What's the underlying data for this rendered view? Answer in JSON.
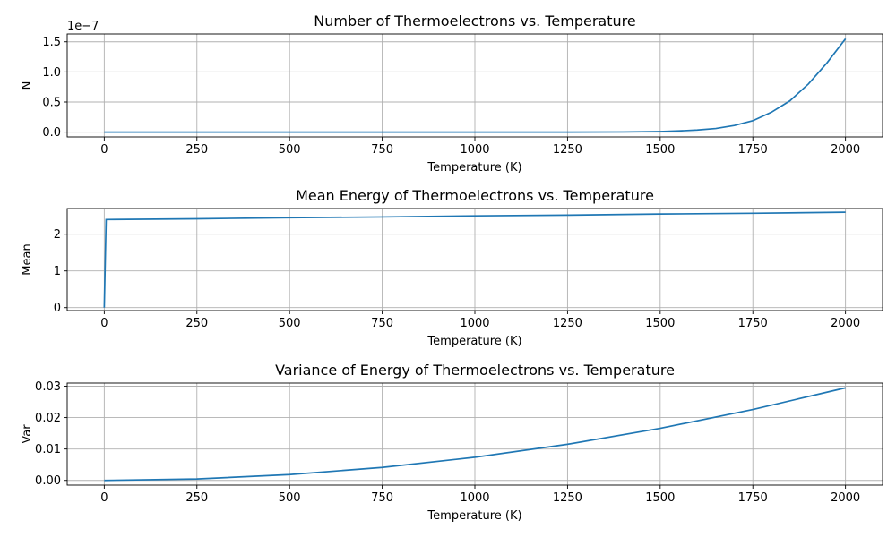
{
  "chart_data": [
    {
      "type": "line",
      "title": "Number of Thermoelectrons vs. Temperature",
      "xlabel": "Temperature (K)",
      "ylabel": "N",
      "offset_text": "1e−7",
      "xlim": [
        -100,
        2100
      ],
      "ylim": [
        -0.08,
        1.63
      ],
      "xticks": [
        0,
        250,
        500,
        750,
        1000,
        1250,
        1500,
        1750,
        2000
      ],
      "yticks": [
        0.0,
        0.5,
        1.0,
        1.5
      ],
      "ytick_labels": [
        "0.0",
        "0.5",
        "1.0",
        "1.5"
      ],
      "grid": true,
      "color": "#1f77b4",
      "series": [
        {
          "x": [
            0,
            250,
            500,
            750,
            1000,
            1250,
            1400,
            1500,
            1550,
            1600,
            1650,
            1700,
            1750,
            1800,
            1850,
            1900,
            1950,
            2000
          ],
          "y": [
            0,
            0,
            0,
            0,
            0,
            0,
            0.003,
            0.01,
            0.02,
            0.035,
            0.06,
            0.11,
            0.19,
            0.33,
            0.52,
            0.8,
            1.15,
            1.55
          ]
        }
      ]
    },
    {
      "type": "line",
      "title": "Mean Energy of Thermoelectrons vs. Temperature",
      "xlabel": "Temperature (K)",
      "ylabel": "Mean",
      "xlim": [
        -100,
        2100
      ],
      "ylim": [
        -0.08,
        2.7
      ],
      "xticks": [
        0,
        250,
        500,
        750,
        1000,
        1250,
        1500,
        1750,
        2000
      ],
      "yticks": [
        0,
        1,
        2
      ],
      "ytick_labels": [
        "0",
        "1",
        "2"
      ],
      "grid": true,
      "color": "#1f77b4",
      "series": [
        {
          "x": [
            0,
            5,
            250,
            500,
            750,
            1000,
            1250,
            1500,
            1750,
            2000
          ],
          "y": [
            0,
            2.4,
            2.42,
            2.45,
            2.47,
            2.5,
            2.52,
            2.55,
            2.57,
            2.6
          ]
        }
      ]
    },
    {
      "type": "line",
      "title": "Variance of Energy of Thermoelectrons vs. Temperature",
      "xlabel": "Temperature (K)",
      "ylabel": "Var",
      "xlim": [
        -100,
        2100
      ],
      "ylim": [
        -0.0015,
        0.031
      ],
      "xticks": [
        0,
        250,
        500,
        750,
        1000,
        1250,
        1500,
        1750,
        2000
      ],
      "yticks": [
        0.0,
        0.01,
        0.02,
        0.03
      ],
      "ytick_labels": [
        "0.00",
        "0.01",
        "0.02",
        "0.03"
      ],
      "grid": true,
      "color": "#1f77b4",
      "series": [
        {
          "x": [
            0,
            250,
            500,
            750,
            1000,
            1250,
            1500,
            1750,
            2000
          ],
          "y": [
            0,
            0.00046,
            0.00184,
            0.00414,
            0.00737,
            0.01151,
            0.01658,
            0.02256,
            0.02947
          ]
        }
      ]
    }
  ]
}
